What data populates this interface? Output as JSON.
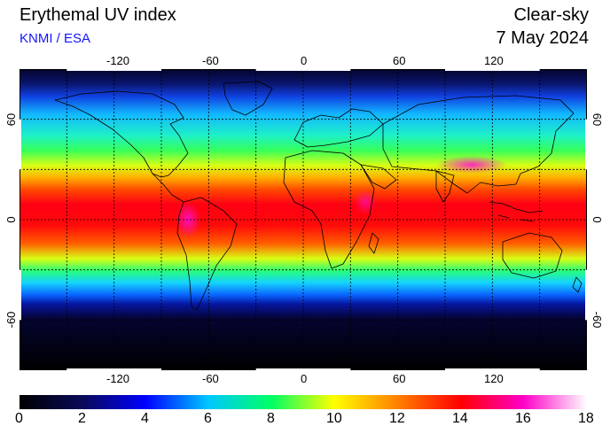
{
  "header": {
    "title": "Erythemal UV index",
    "credit": "KNMI / ESA",
    "condition": "Clear-sky",
    "date": "7 May 2024"
  },
  "map": {
    "projection": "equirectangular",
    "lon_range": [
      -180,
      180
    ],
    "lat_range": [
      -90,
      90
    ],
    "graticule": "dashed 30° grid",
    "lon_tick_labels": [
      "-120",
      "-60",
      "0",
      "60",
      "120"
    ],
    "lat_tick_labels": [
      "60",
      "0",
      "-60"
    ]
  },
  "colorbar": {
    "min": 0,
    "max": 18,
    "tick_labels": [
      "0",
      "2",
      "4",
      "6",
      "8",
      "10",
      "12",
      "14",
      "16",
      "18"
    ],
    "colors": [
      "#000000",
      "#0a0a5a",
      "#0000ff",
      "#00c8ff",
      "#00ff64",
      "#ffff00",
      "#ff8000",
      "#ff0000",
      "#ff00c8",
      "#ffffff"
    ]
  }
}
